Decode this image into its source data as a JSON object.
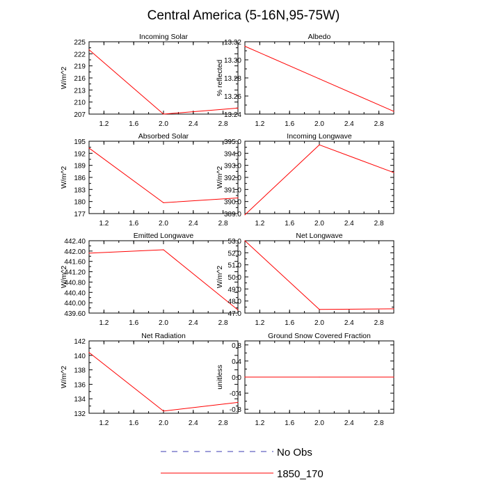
{
  "figure": {
    "title": "Central America (5-16N,95-75W)",
    "legend": [
      {
        "label": "No Obs",
        "color": "#3b3bb0",
        "dashed": true
      },
      {
        "label": "1850_170",
        "color": "#ff0000",
        "dashed": false
      }
    ]
  },
  "chart_data": [
    {
      "type": "line",
      "title": "Incoming Solar",
      "ylabel": "W/m^2",
      "xlim": [
        1,
        3
      ],
      "ylim": [
        207,
        225
      ],
      "xticks": [
        "1.2",
        "1.6",
        "2.0",
        "2.4",
        "2.8"
      ],
      "yticks": [
        "207",
        "210",
        "213",
        "216",
        "219",
        "222",
        "225"
      ],
      "series": [
        {
          "name": "1850_170",
          "x": [
            1,
            2,
            3
          ],
          "values": [
            223.0,
            207.0,
            208.5
          ]
        }
      ]
    },
    {
      "type": "line",
      "title": "Albedo",
      "ylabel": "% reflected",
      "xlim": [
        1,
        3
      ],
      "ylim": [
        13.24,
        13.32
      ],
      "xticks": [
        "1.2",
        "1.6",
        "2.0",
        "2.4",
        "2.8"
      ],
      "yticks": [
        "13.24",
        "13.26",
        "13.28",
        "13.30",
        "13.32"
      ],
      "series": [
        {
          "name": "1850_170",
          "x": [
            1,
            2,
            3
          ],
          "values": [
            13.315,
            13.279,
            13.243
          ]
        }
      ]
    },
    {
      "type": "line",
      "title": "Absorbed Solar",
      "ylabel": "W/m^2",
      "xlim": [
        1,
        3
      ],
      "ylim": [
        177,
        195
      ],
      "xticks": [
        "1.2",
        "1.6",
        "2.0",
        "2.4",
        "2.8"
      ],
      "yticks": [
        "177",
        "180",
        "183",
        "186",
        "189",
        "192",
        "195"
      ],
      "series": [
        {
          "name": "1850_170",
          "x": [
            1,
            2,
            3
          ],
          "values": [
            193.3,
            179.7,
            180.9
          ]
        }
      ]
    },
    {
      "type": "line",
      "title": "Incoming Longwave",
      "ylabel": "W/m^2",
      "xlim": [
        1,
        3
      ],
      "ylim": [
        389.0,
        395.0
      ],
      "xticks": [
        "1.2",
        "1.6",
        "2.0",
        "2.4",
        "2.8"
      ],
      "yticks": [
        "389.0",
        "390.0",
        "391.0",
        "392.0",
        "393.0",
        "394.0",
        "395.0"
      ],
      "series": [
        {
          "name": "1850_170",
          "x": [
            1,
            2,
            3
          ],
          "values": [
            388.9,
            394.7,
            392.4
          ]
        }
      ]
    },
    {
      "type": "line",
      "title": "Emitted Longwave",
      "ylabel": "W/m^2",
      "xlim": [
        1,
        3
      ],
      "ylim": [
        439.6,
        442.4
      ],
      "xticks": [
        "1.2",
        "1.6",
        "2.0",
        "2.4",
        "2.8"
      ],
      "yticks": [
        "439.60",
        "440.00",
        "440.40",
        "440.80",
        "441.20",
        "441.60",
        "442.00",
        "442.40"
      ],
      "series": [
        {
          "name": "1850_170",
          "x": [
            1,
            2,
            3
          ],
          "values": [
            441.92,
            442.05,
            439.72
          ]
        }
      ]
    },
    {
      "type": "line",
      "title": "Net Longwave",
      "ylabel": "W/m^2",
      "xlim": [
        1,
        3
      ],
      "ylim": [
        47.0,
        53.0
      ],
      "xticks": [
        "1.2",
        "1.6",
        "2.0",
        "2.4",
        "2.8"
      ],
      "yticks": [
        "47.0",
        "48.0",
        "49.0",
        "50.0",
        "51.0",
        "52.0",
        "53.0"
      ],
      "series": [
        {
          "name": "1850_170",
          "x": [
            1,
            2,
            3
          ],
          "values": [
            53.0,
            47.3,
            47.35
          ]
        }
      ]
    },
    {
      "type": "line",
      "title": "Net Radiation",
      "ylabel": "W/m^2",
      "xlim": [
        1,
        3
      ],
      "ylim": [
        132,
        142
      ],
      "xticks": [
        "1.2",
        "1.6",
        "2.0",
        "2.4",
        "2.8"
      ],
      "yticks": [
        "132",
        "134",
        "136",
        "138",
        "140",
        "142"
      ],
      "series": [
        {
          "name": "1850_170",
          "x": [
            1,
            2,
            3
          ],
          "values": [
            140.4,
            132.3,
            133.5
          ]
        }
      ]
    },
    {
      "type": "line",
      "title": "Ground Snow Covered Fraction",
      "ylabel": "unitless",
      "xlim": [
        1,
        3
      ],
      "ylim": [
        -0.9,
        0.9
      ],
      "xticks": [
        "1.2",
        "1.6",
        "2.0",
        "2.4",
        "2.8"
      ],
      "yticks": [
        "-0.8",
        "-0.4",
        "0.0",
        "0.4",
        "0.8"
      ],
      "series": [
        {
          "name": "1850_170",
          "x": [
            1,
            2,
            3
          ],
          "values": [
            0.0,
            0.0,
            0.0
          ]
        }
      ]
    }
  ]
}
